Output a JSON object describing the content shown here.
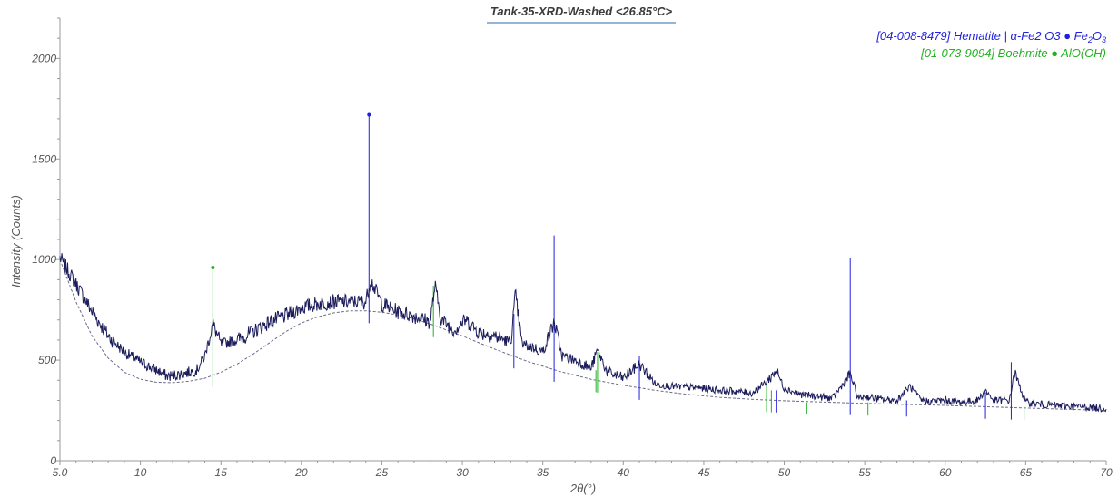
{
  "chart_data": {
    "type": "line",
    "title": "Tank-35-XRD-Washed <26.85°C>",
    "xlabel": "2θ(°)",
    "ylabel": "Intensity (Counts)",
    "xlim": [
      5.0,
      70
    ],
    "ylim": [
      0,
      2200
    ],
    "x_ticks": [
      5.0,
      10,
      15,
      20,
      25,
      30,
      35,
      40,
      45,
      50,
      55,
      60,
      65,
      70
    ],
    "x_tick_labels": [
      "5.0",
      "10",
      "15",
      "20",
      "25",
      "30",
      "35",
      "40",
      "45",
      "50",
      "55",
      "60",
      "65",
      "70"
    ],
    "y_ticks": [
      0,
      500,
      1000,
      1500,
      2000
    ],
    "y_tick_labels": [
      "0",
      "500",
      "1000",
      "1500",
      "2000"
    ],
    "grid": false,
    "legend_position": "top-right",
    "colors": {
      "pattern": "#1c1c5c",
      "background_curve": "#6a6a8a",
      "hematite": "#1f1fe0",
      "boehmite": "#22b022",
      "title_underline": "#2a6ab0"
    },
    "series": [
      {
        "name": "Tank-35-XRD-Washed",
        "x": [
          5.0,
          6.0,
          7.0,
          8.0,
          9.0,
          10.0,
          11.0,
          11.7,
          12.5,
          13.5,
          14.0,
          14.5,
          15.0,
          16.0,
          17.0,
          18.0,
          19.0,
          20.0,
          21.0,
          22.0,
          23.0,
          24.0,
          24.3,
          25.0,
          26.0,
          27.0,
          28.0,
          28.3,
          28.7,
          29.5,
          30.2,
          31.0,
          32.0,
          33.0,
          33.3,
          33.7,
          34.5,
          35.0,
          35.7,
          36.2,
          37.0,
          38.0,
          38.4,
          39.0,
          40.0,
          41.0,
          42.0,
          43.0,
          44.0,
          45.0,
          46.0,
          47.0,
          48.0,
          49.0,
          49.5,
          50.0,
          51.0,
          52.0,
          53.0,
          54.1,
          54.6,
          55.0,
          56.0,
          57.0,
          57.8,
          58.5,
          59.0,
          60.0,
          61.0,
          62.0,
          62.5,
          63.0,
          64.0,
          64.3,
          65.0,
          66.0,
          67.0,
          68.0,
          69.0,
          70.0
        ],
        "y": [
          1010,
          880,
          740,
          620,
          540,
          490,
          450,
          420,
          430,
          450,
          520,
          680,
          580,
          600,
          640,
          690,
          720,
          760,
          780,
          790,
          790,
          790,
          900,
          780,
          740,
          720,
          690,
          870,
          700,
          650,
          700,
          640,
          620,
          590,
          830,
          580,
          560,
          540,
          690,
          520,
          500,
          460,
          550,
          440,
          410,
          480,
          380,
          370,
          365,
          360,
          350,
          345,
          335,
          400,
          450,
          360,
          330,
          320,
          310,
          430,
          310,
          320,
          305,
          300,
          370,
          300,
          295,
          300,
          290,
          300,
          350,
          300,
          300,
          440,
          290,
          280,
          275,
          270,
          265,
          260
        ]
      },
      {
        "name": "Background",
        "x": [
          5.0,
          6.0,
          7.0,
          8.0,
          9.0,
          10.0,
          11.0,
          12.0,
          13.0,
          14.0,
          15.0,
          16.0,
          17.0,
          18.0,
          19.0,
          20.0,
          21.0,
          22.0,
          23.0,
          24.0,
          25.0,
          26.0,
          27.0,
          28.0,
          29.0,
          30.0,
          32.0,
          34.0,
          36.0,
          38.0,
          40.0,
          42.0,
          44.0,
          46.0,
          48.0,
          50.0,
          55.0,
          60.0,
          65.0,
          70.0
        ],
        "y": [
          1000,
          790,
          620,
          510,
          440,
          405,
          390,
          388,
          395,
          410,
          440,
          480,
          530,
          585,
          640,
          685,
          715,
          735,
          745,
          745,
          738,
          725,
          705,
          680,
          650,
          620,
          555,
          495,
          445,
          405,
          375,
          350,
          330,
          315,
          305,
          298,
          285,
          275,
          262,
          250
        ]
      }
    ],
    "reference_patterns": [
      {
        "name": "[04-008-8479] Hematite | α-Fe2 O3 ● Fe2O3",
        "legend_main": "[04-008-8479] Hematite | α-Fe2 O3 ● Fe",
        "legend_sub1": "2",
        "legend_mid": "O",
        "legend_sub2": "3",
        "color": "#1f1fe0",
        "sticks": [
          {
            "x": 24.2,
            "y": 1720
          },
          {
            "x": 33.2,
            "y": 730
          },
          {
            "x": 35.7,
            "y": 1120
          },
          {
            "x": 41.0,
            "y": 520
          },
          {
            "x": 49.5,
            "y": 350
          },
          {
            "x": 54.1,
            "y": 1010
          },
          {
            "x": 57.6,
            "y": 300
          },
          {
            "x": 62.5,
            "y": 340
          },
          {
            "x": 64.1,
            "y": 490
          }
        ],
        "marker_x": 24.2,
        "marker_y": 1720
      },
      {
        "name": "[01-073-9094] Boehmite ● AlO(OH)",
        "legend_main": "[01-073-9094] Boehmite ● AlO(OH)",
        "color": "#22b022",
        "sticks": [
          {
            "x": 14.5,
            "y": 960
          },
          {
            "x": 28.2,
            "y": 870
          },
          {
            "x": 38.4,
            "y": 540
          },
          {
            "x": 38.3,
            "y": 450
          },
          {
            "x": 48.9,
            "y": 390
          },
          {
            "x": 49.2,
            "y": 350
          },
          {
            "x": 51.4,
            "y": 290
          },
          {
            "x": 55.2,
            "y": 290
          },
          {
            "x": 64.9,
            "y": 270
          }
        ],
        "marker_x": 14.5,
        "marker_y": 960
      }
    ]
  }
}
